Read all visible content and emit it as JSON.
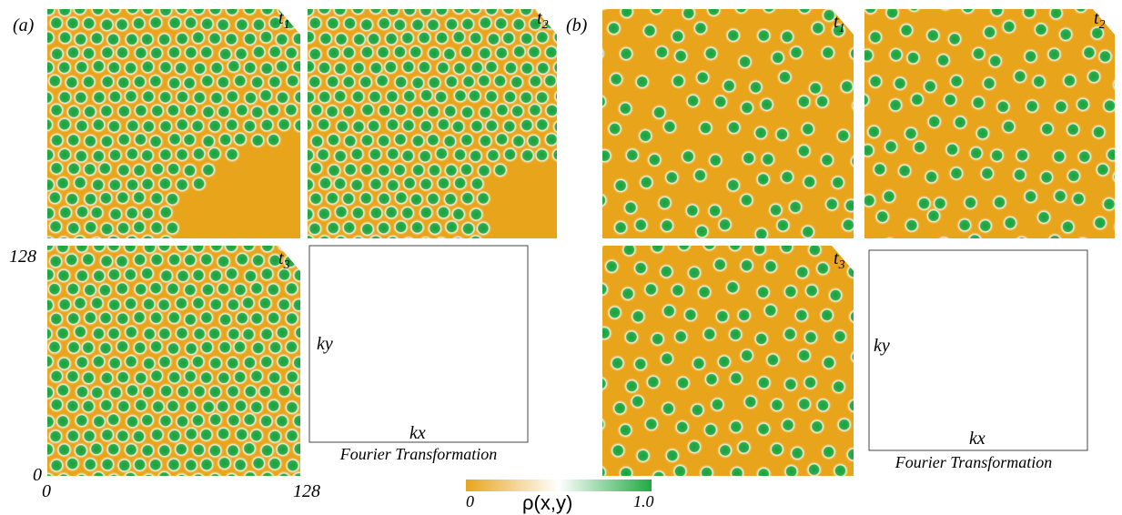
{
  "panel_a": {
    "label": "(a)",
    "snapshots": [
      {
        "symbol": "t",
        "index": "1"
      },
      {
        "symbol": "t",
        "index": "2"
      },
      {
        "symbol": "t",
        "index": "3"
      }
    ],
    "axis": {
      "y_max": "128",
      "y_min": "0",
      "x_min": "0",
      "x_max": "128"
    },
    "fourier": {
      "ky": "ky",
      "kx": "kx",
      "caption": "Fourier Transformation"
    }
  },
  "panel_b": {
    "label": "(b)",
    "snapshots": [
      {
        "symbol": "t",
        "index": "1"
      },
      {
        "symbol": "t",
        "index": "2"
      },
      {
        "symbol": "t",
        "index": "3"
      }
    ],
    "fourier": {
      "ky": "ky",
      "kx": "kx",
      "caption": "Fourier Transformation"
    }
  },
  "colorbar": {
    "min": "0",
    "label": "ρ(x,y)",
    "max": "1.0"
  }
}
